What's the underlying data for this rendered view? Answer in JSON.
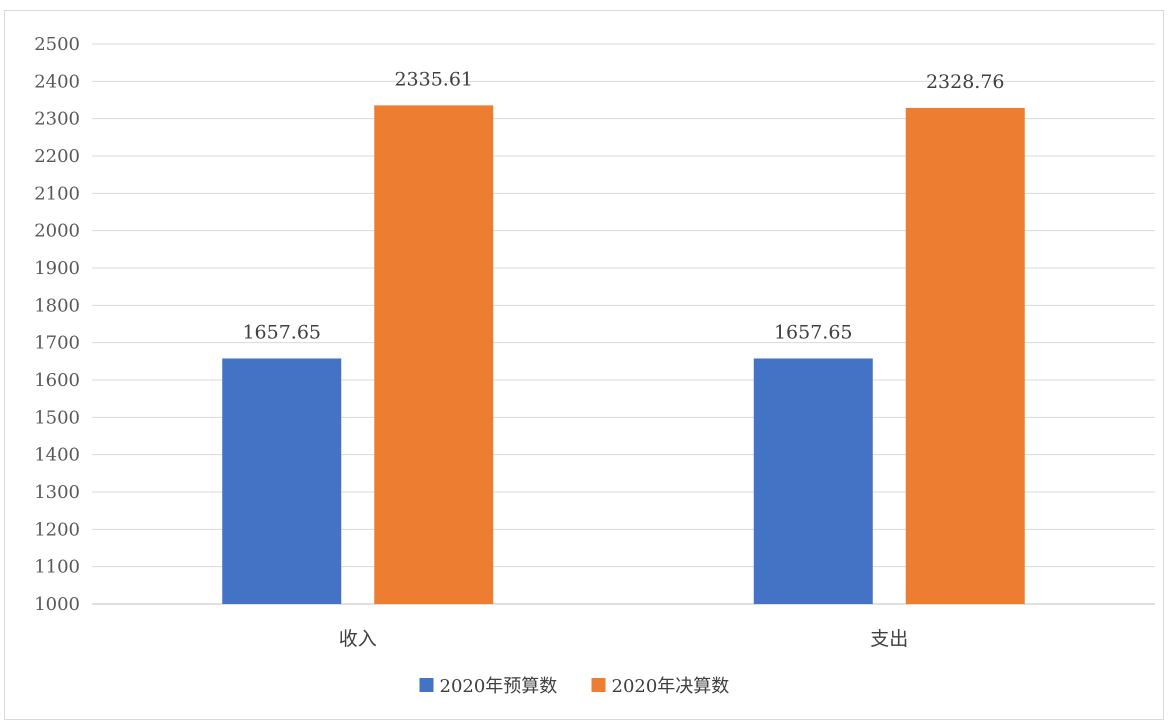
{
  "chart_data": {
    "type": "bar",
    "categories": [
      "收入",
      "支出"
    ],
    "series": [
      {
        "name": "2020年预算数",
        "values": [
          1657.65,
          1657.65
        ]
      },
      {
        "name": "2020年决算数",
        "values": [
          2335.61,
          2328.76
        ]
      }
    ],
    "data_labels": [
      [
        "1657.65",
        "1657.65"
      ],
      [
        "2335.61",
        "2328.76"
      ]
    ],
    "ylim": [
      1000,
      2500
    ],
    "ytick_step": 100,
    "ytick_labels": [
      "1000",
      "1100",
      "1200",
      "1300",
      "1400",
      "1500",
      "1600",
      "1700",
      "1800",
      "1900",
      "2000",
      "2100",
      "2200",
      "2300",
      "2400",
      "2500"
    ],
    "grid": true,
    "legend_position": "bottom",
    "colors": [
      "#4472C4",
      "#ED7D31"
    ]
  }
}
